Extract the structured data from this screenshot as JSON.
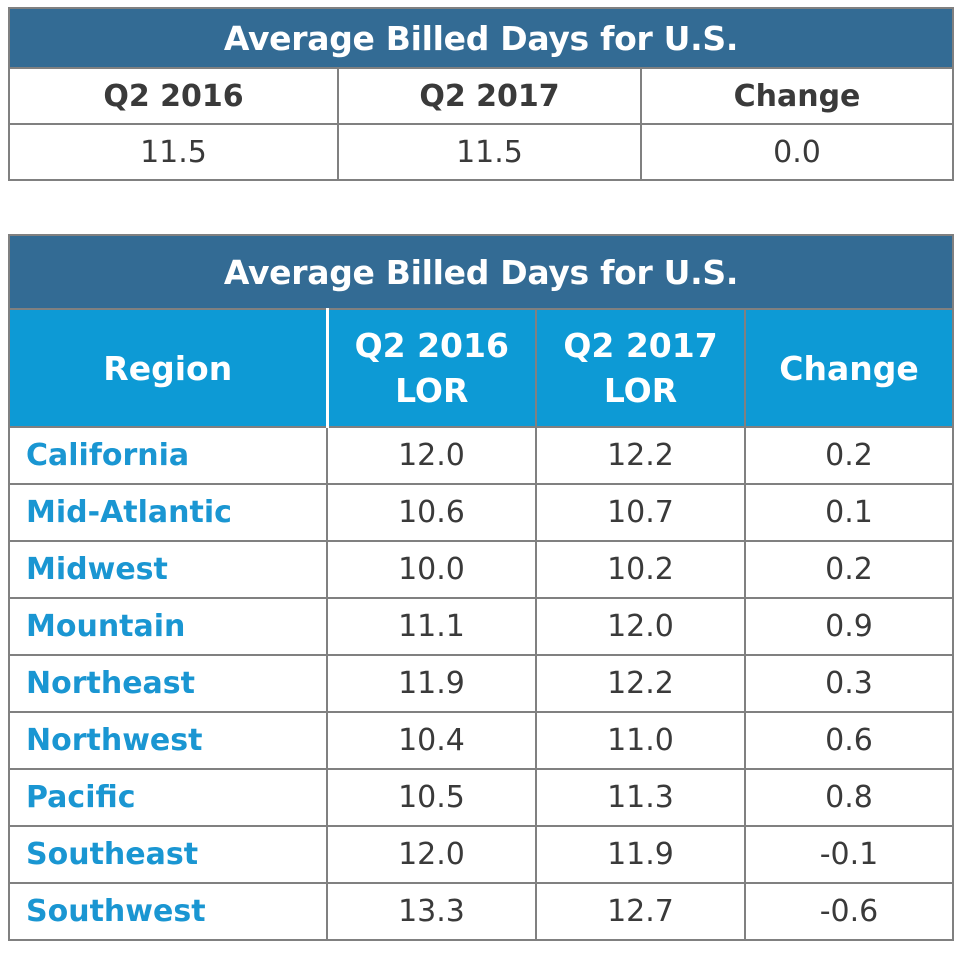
{
  "summary": {
    "title": "Average Billed Days for U.S.",
    "headers": [
      "Q2 2016",
      "Q2 2017",
      "Change"
    ],
    "values": [
      "11.5",
      "11.5",
      "0.0"
    ]
  },
  "regional": {
    "title": "Average Billed Days for U.S.",
    "headers": {
      "region": "Region",
      "q2_2016_line1": "Q2 2016",
      "q2_2016_line2": "LOR",
      "q2_2017_line1": "Q2 2017",
      "q2_2017_line2": "LOR",
      "change": "Change"
    },
    "rows": [
      {
        "region": "California",
        "q2_2016": "12.0",
        "q2_2017": "12.2",
        "change": "0.2"
      },
      {
        "region": "Mid-Atlantic",
        "q2_2016": "10.6",
        "q2_2017": "10.7",
        "change": "0.1"
      },
      {
        "region": "Midwest",
        "q2_2016": "10.0",
        "q2_2017": "10.2",
        "change": "0.2"
      },
      {
        "region": "Mountain",
        "q2_2016": "11.1",
        "q2_2017": "12.0",
        "change": "0.9"
      },
      {
        "region": "Northeast",
        "q2_2016": "11.9",
        "q2_2017": "12.2",
        "change": "0.3"
      },
      {
        "region": "Northwest",
        "q2_2016": "10.4",
        "q2_2017": "11.0",
        "change": "0.6"
      },
      {
        "region": "Pacific",
        "q2_2016": "10.5",
        "q2_2017": "11.3",
        "change": "0.8"
      },
      {
        "region": "Southeast",
        "q2_2016": "12.0",
        "q2_2017": "11.9",
        "change": "-0.1"
      },
      {
        "region": "Southwest",
        "q2_2016": "13.3",
        "q2_2017": "12.7",
        "change": "-0.6"
      }
    ]
  },
  "colors": {
    "title_bg": "#336b94",
    "header_bg": "#0d9ad5",
    "region_text": "#1a96d2",
    "body_text": "#3a3a3a",
    "grid": "#808080"
  },
  "chart_data": [
    {
      "type": "table",
      "title": "Average Billed Days for U.S.",
      "columns": [
        "Q2 2016",
        "Q2 2017",
        "Change"
      ],
      "rows": [
        [
          "11.5",
          "11.5",
          "0.0"
        ]
      ]
    },
    {
      "type": "table",
      "title": "Average Billed Days for U.S.",
      "columns": [
        "Region",
        "Q2 2016 LOR",
        "Q2 2017 LOR",
        "Change"
      ],
      "rows": [
        [
          "California",
          12.0,
          12.2,
          0.2
        ],
        [
          "Mid-Atlantic",
          10.6,
          10.7,
          0.1
        ],
        [
          "Midwest",
          10.0,
          10.2,
          0.2
        ],
        [
          "Mountain",
          11.1,
          12.0,
          0.9
        ],
        [
          "Northeast",
          11.9,
          12.2,
          0.3
        ],
        [
          "Northwest",
          10.4,
          11.0,
          0.6
        ],
        [
          "Pacific",
          10.5,
          11.3,
          0.8
        ],
        [
          "Southeast",
          12.0,
          11.9,
          -0.1
        ],
        [
          "Southwest",
          13.3,
          12.7,
          -0.6
        ]
      ]
    }
  ]
}
